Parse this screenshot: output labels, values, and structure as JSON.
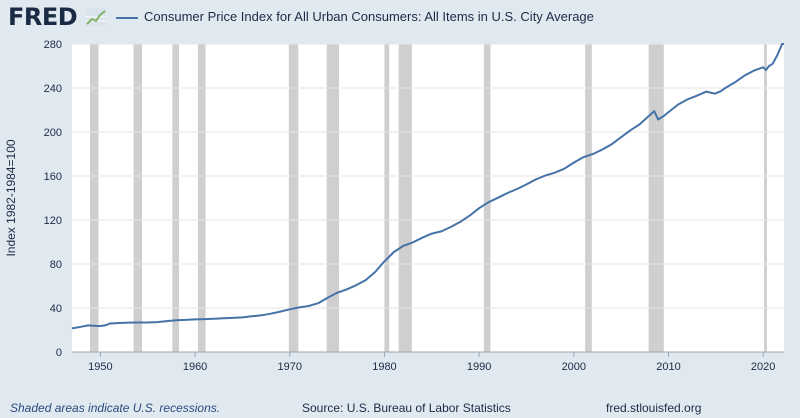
{
  "header": {
    "logo_text": "FRED",
    "logo_icon": "trend-line-icon",
    "series_color": "#4572a7",
    "recession_color": "#cfcfcf"
  },
  "footer": {
    "note": "Shaded areas indicate U.S. recessions.",
    "source": "Source: U.S. Bureau of Labor Statistics",
    "site": "fred.stlouisfed.org"
  },
  "chart_data": {
    "type": "line",
    "title": "",
    "xlabel": "",
    "ylabel": "Index 1982-1984=100",
    "xlim": [
      1947.0,
      2022.2
    ],
    "ylim": [
      0,
      280
    ],
    "x_ticks": [
      "1950",
      "1960",
      "1970",
      "1980",
      "1990",
      "2000",
      "2010",
      "2020"
    ],
    "y_ticks": [
      "0",
      "40",
      "80",
      "120",
      "160",
      "200",
      "240",
      "280"
    ],
    "grid": "horizontal",
    "legend": "top-left",
    "recessions": [
      [
        1948.9,
        1949.8
      ],
      [
        1953.5,
        1954.4
      ],
      [
        1957.6,
        1958.3
      ],
      [
        1960.3,
        1961.1
      ],
      [
        1969.9,
        1970.9
      ],
      [
        1973.9,
        1975.2
      ],
      [
        1980.0,
        1980.5
      ],
      [
        1981.5,
        1982.9
      ],
      [
        1990.5,
        1991.2
      ],
      [
        2001.2,
        2001.9
      ],
      [
        2007.9,
        2009.5
      ],
      [
        2020.1,
        2020.4
      ]
    ],
    "series": [
      {
        "name": "Consumer Price Index for All Urban Consumers: All Items in U.S. City Average",
        "x": [
          1947.0,
          1948.0,
          1948.7,
          1949.5,
          1950.0,
          1950.5,
          1951.0,
          1952.0,
          1953.0,
          1954.0,
          1955.0,
          1956.0,
          1957.0,
          1958.0,
          1959.0,
          1960.0,
          1961.0,
          1962.0,
          1963.0,
          1964.0,
          1965.0,
          1966.0,
          1967.0,
          1968.0,
          1969.0,
          1970.0,
          1971.0,
          1972.0,
          1973.0,
          1974.0,
          1975.0,
          1976.0,
          1977.0,
          1978.0,
          1979.0,
          1980.0,
          1981.0,
          1982.0,
          1983.0,
          1984.0,
          1985.0,
          1986.0,
          1987.0,
          1988.0,
          1989.0,
          1990.0,
          1991.0,
          1992.0,
          1993.0,
          1994.0,
          1995.0,
          1996.0,
          1997.0,
          1998.0,
          1999.0,
          2000.0,
          2001.0,
          2002.0,
          2003.0,
          2004.0,
          2005.0,
          2006.0,
          2007.0,
          2008.0,
          2008.5,
          2008.9,
          2009.5,
          2010.0,
          2011.0,
          2012.0,
          2013.0,
          2014.0,
          2014.9,
          2015.5,
          2016.0,
          2017.0,
          2018.0,
          2019.0,
          2020.0,
          2020.3,
          2020.6,
          2021.0,
          2021.5,
          2022.0,
          2022.2
        ],
        "values": [
          21.5,
          23.0,
          24.2,
          23.7,
          23.6,
          24.2,
          25.9,
          26.4,
          26.7,
          26.8,
          26.8,
          27.2,
          28.1,
          28.9,
          29.2,
          29.6,
          29.9,
          30.3,
          30.6,
          31.0,
          31.5,
          32.5,
          33.4,
          34.8,
          36.7,
          38.8,
          40.5,
          41.8,
          44.4,
          49.3,
          53.8,
          56.9,
          60.6,
          65.2,
          72.6,
          82.4,
          90.9,
          96.5,
          99.6,
          103.9,
          107.6,
          109.6,
          113.6,
          118.3,
          124.0,
          130.7,
          136.2,
          140.3,
          144.5,
          148.2,
          152.4,
          156.9,
          160.5,
          163.0,
          166.6,
          172.2,
          177.1,
          179.9,
          184.0,
          188.9,
          195.3,
          201.6,
          207.3,
          215.3,
          219.0,
          211.4,
          214.5,
          218.1,
          224.9,
          229.6,
          233.0,
          236.7,
          234.8,
          237.0,
          240.0,
          245.1,
          251.1,
          255.7,
          258.8,
          256.4,
          259.9,
          262.0,
          270.0,
          281.0,
          287.5
        ]
      }
    ]
  }
}
